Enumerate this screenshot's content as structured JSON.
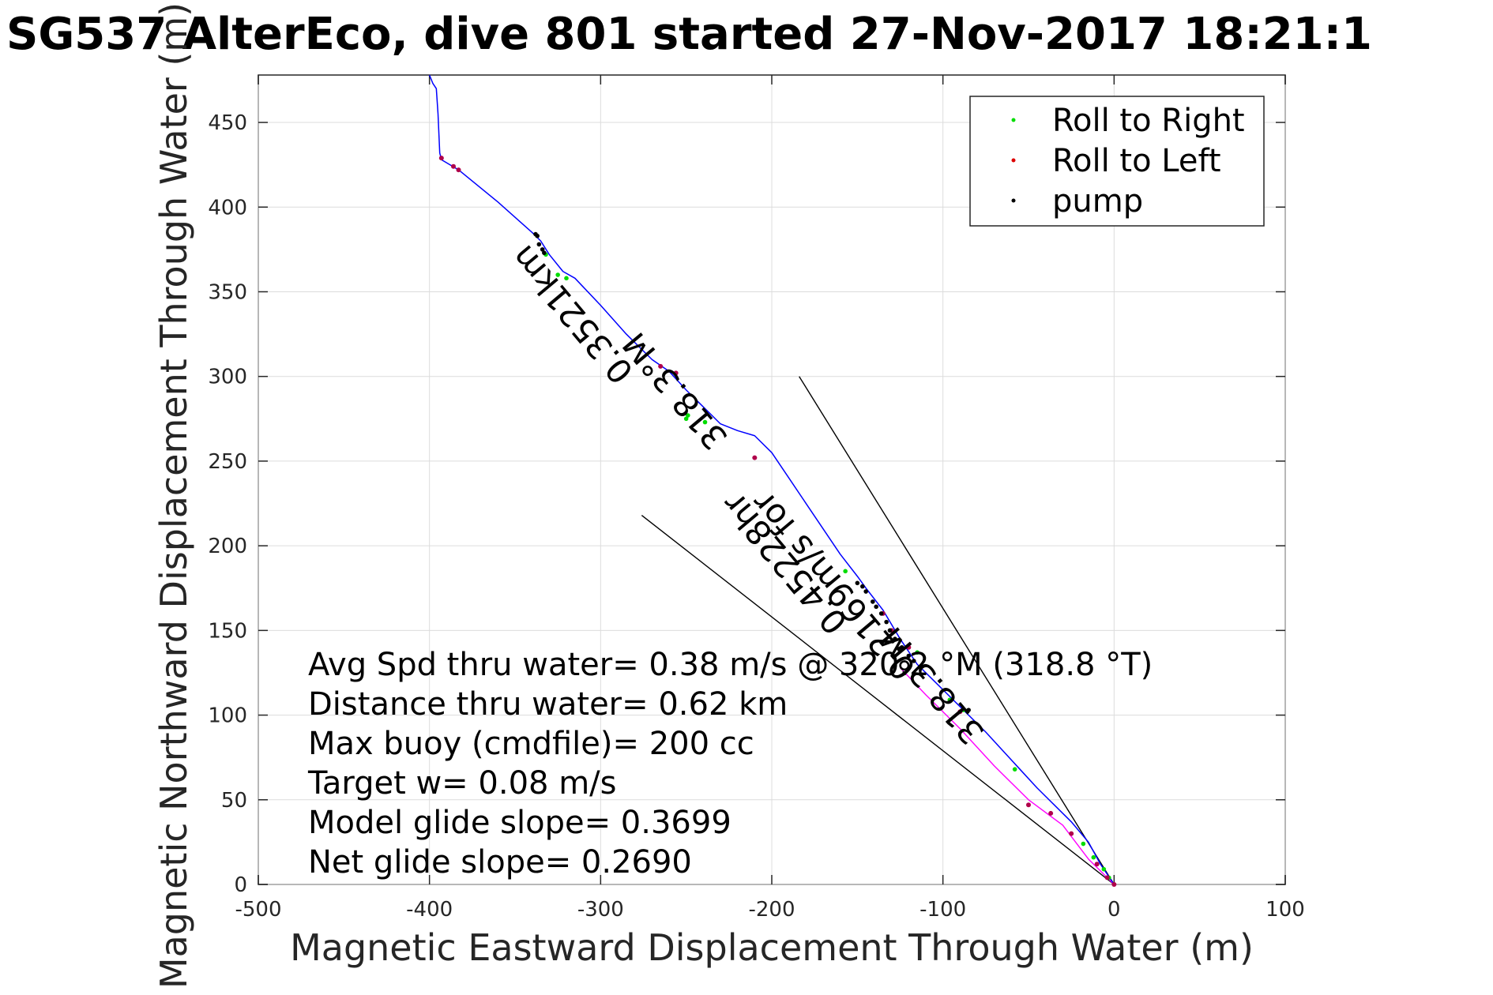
{
  "chart_data": {
    "type": "line",
    "title": "SG537 AlterEco, dive 801 started 27-Nov-2017 18:21:1",
    "xlabel": "Magnetic Eastward Displacement Through Water (m)",
    "ylabel": "Magnetic Northward Displacement Through Water (m)",
    "xlim": [
      -500,
      100
    ],
    "ylim": [
      0,
      478
    ],
    "xticks": [
      -500,
      -400,
      -300,
      -200,
      -100,
      0,
      100
    ],
    "yticks": [
      0,
      50,
      100,
      150,
      200,
      250,
      300,
      350,
      400,
      450
    ],
    "xtick_labels": [
      "-500",
      "-400",
      "-300",
      "-200",
      "-100",
      "0",
      "100"
    ],
    "ytick_labels": [
      "0",
      "50",
      "100",
      "150",
      "200",
      "250",
      "300",
      "350",
      "400",
      "450"
    ],
    "grid": true,
    "legend_position": "top-right",
    "legend": [
      {
        "label": "Roll to Right",
        "color": "#00dd00"
      },
      {
        "label": "Roll to Left",
        "color": "#dd0000"
      },
      {
        "label": "pump",
        "color": "#000000"
      }
    ],
    "track": {
      "color": "#0000ff",
      "x": [
        0,
        -8,
        -15,
        -25,
        -35,
        -45,
        -55,
        -65,
        -75,
        -85,
        -95,
        -105,
        -115,
        -125,
        -135,
        -145,
        -150,
        -160,
        -170,
        -180,
        -190,
        -200,
        -210,
        -220,
        -230,
        -240,
        -250,
        -260,
        -270,
        -285,
        -300,
        -315,
        -322,
        -330,
        -335,
        -340,
        -360,
        -383,
        -393,
        -394,
        -395,
        -396,
        -398,
        -400
      ],
      "y": [
        0,
        12,
        25,
        37,
        47,
        57,
        68,
        79,
        90,
        100,
        110,
        120,
        130,
        145,
        162,
        175,
        182,
        195,
        210,
        225,
        240,
        255,
        265,
        268,
        272,
        282,
        292,
        303,
        310,
        325,
        342,
        358,
        362,
        372,
        380,
        385,
        403,
        422,
        428,
        432,
        455,
        470,
        473,
        478
      ]
    },
    "track_magenta": {
      "color": "#ff00ff",
      "x": [
        0,
        -15,
        -30,
        -50,
        -70,
        -90,
        -110,
        -125
      ],
      "y": [
        0,
        15,
        35,
        50,
        70,
        92,
        112,
        128
      ]
    },
    "roll_right_points": {
      "x": [
        -3,
        -6,
        -12,
        -18,
        -58,
        -88,
        -96,
        -115,
        -157,
        -239,
        -249,
        -250,
        -332,
        -320,
        -325
      ],
      "y": [
        4,
        9,
        16,
        24,
        68,
        103,
        109,
        137,
        185,
        273,
        277,
        275,
        372,
        358,
        360
      ]
    },
    "roll_left_points": {
      "x": [
        0,
        -4,
        -10,
        -25,
        -37,
        -50,
        -90,
        -120,
        -130,
        -135,
        -210,
        -256,
        -265,
        -393,
        -383,
        -386
      ],
      "y": [
        0,
        4,
        12,
        30,
        42,
        47,
        102,
        140,
        150,
        160,
        252,
        302,
        306,
        429,
        422,
        424
      ],
      "color": "#b0004a"
    },
    "pump_points": {
      "x": [
        -85,
        -117,
        -120,
        -124,
        -128,
        -131,
        -133,
        -136,
        -139,
        -141,
        -145,
        -147,
        -150,
        -336,
        -337,
        -338,
        -334,
        -333
      ],
      "y": [
        103,
        132,
        135,
        140,
        145,
        150,
        155,
        160,
        164,
        167,
        173,
        176,
        178,
        378,
        383,
        384,
        375,
        373
      ]
    },
    "wedge_lines": [
      {
        "x": [
          0,
          -184
        ],
        "y": [
          0,
          300
        ]
      },
      {
        "x": [
          0,
          -276
        ],
        "y": [
          0,
          218
        ]
      }
    ],
    "rotated_labels": [
      {
        "text": "0.3521km",
        "x": -280,
        "y": 303,
        "angle": 50
      },
      {
        "text": "318.3°M",
        "x": -225,
        "y": 264,
        "angle": 50
      },
      {
        "text": "0.45228hr",
        "x": -155,
        "y": 155,
        "angle": 50
      },
      {
        "text": "0.2169m/s for",
        "x": -115,
        "y": 128,
        "angle": 50
      },
      {
        "text": "318.3°M",
        "x": -75,
        "y": 90,
        "angle": 50
      }
    ],
    "annotations": [
      "Avg Spd thru water=  0.38 m/s @ 320.2 °M (318.8 °T)",
      "Distance thru water=  0.62 km",
      "Max buoy (cmdfile)= 200 cc",
      "Target w= 0.08 m/s",
      "Model glide slope= 0.3699",
      "Net glide slope= 0.2690"
    ]
  }
}
